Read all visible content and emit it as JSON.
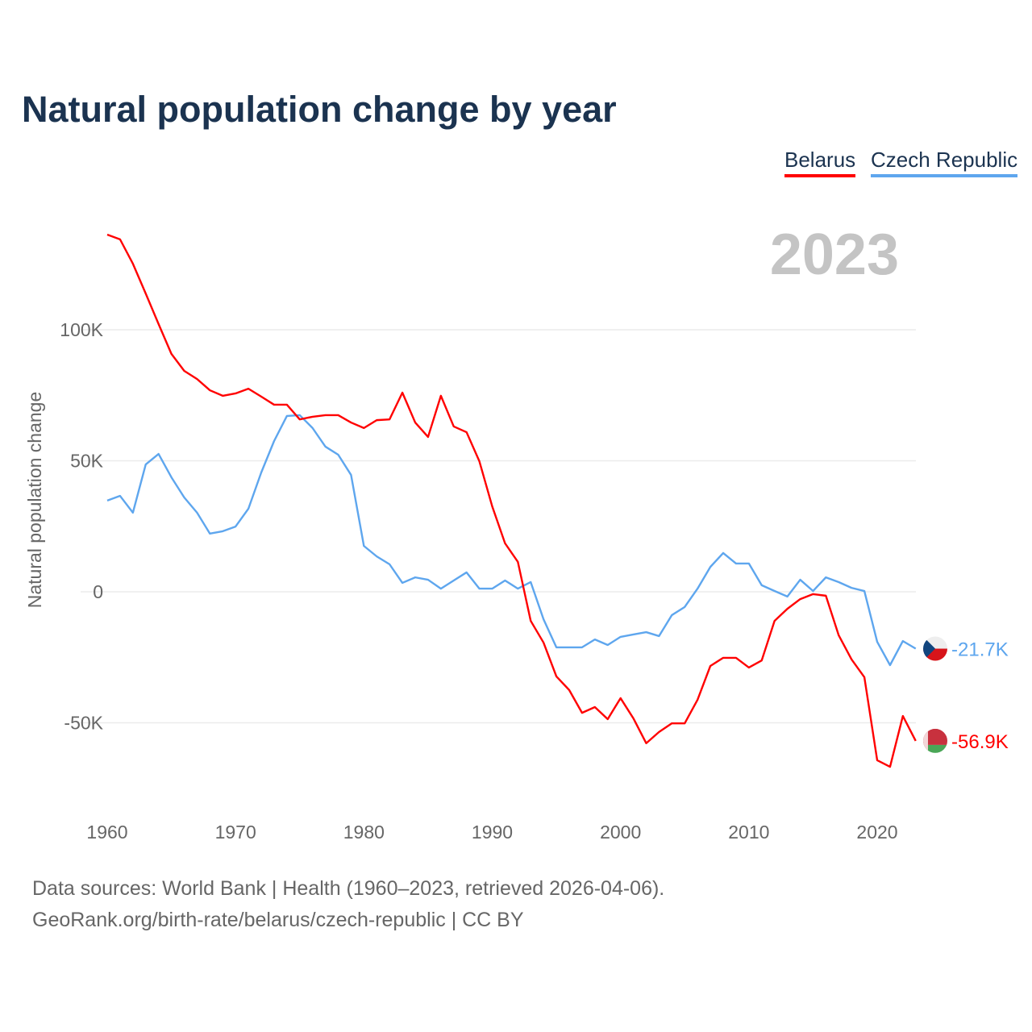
{
  "chart_data": {
    "type": "line",
    "title": "Natural population change by year",
    "ylabel": "Natural population change",
    "xlabel": "",
    "xlim": [
      1960,
      2023
    ],
    "ylim": [
      -80000,
      140000
    ],
    "x_ticks": [
      1960,
      1970,
      1980,
      1990,
      2000,
      2010,
      2020
    ],
    "x_tick_labels": [
      "1960",
      "1970",
      "1980",
      "1990",
      "2000",
      "2010",
      "2020"
    ],
    "y_ticks": [
      100000,
      50000,
      0,
      -50000
    ],
    "y_tick_labels": [
      "100K",
      "50K",
      "0",
      "-50K"
    ],
    "grid": true,
    "legend_placement": "top-right",
    "year_label": "2023",
    "x": [
      1960,
      1961,
      1962,
      1963,
      1964,
      1965,
      1966,
      1967,
      1968,
      1969,
      1970,
      1971,
      1972,
      1973,
      1974,
      1975,
      1976,
      1977,
      1978,
      1979,
      1980,
      1981,
      1982,
      1983,
      1984,
      1985,
      1986,
      1987,
      1988,
      1989,
      1990,
      1991,
      1992,
      1993,
      1994,
      1995,
      1996,
      1997,
      1998,
      1999,
      2000,
      2001,
      2002,
      2003,
      2004,
      2005,
      2006,
      2007,
      2008,
      2009,
      2010,
      2011,
      2012,
      2013,
      2014,
      2015,
      2016,
      2017,
      2018,
      2019,
      2020,
      2021,
      2022,
      2023
    ],
    "series": [
      {
        "name": "Belarus",
        "color": "#ff0000",
        "end_label": "-56.9K",
        "flag": "belarus-flag",
        "values": [
          136300,
          134500,
          125200,
          113800,
          102200,
          90800,
          84300,
          81200,
          76900,
          74800,
          75700,
          77500,
          74500,
          71400,
          71400,
          65800,
          66800,
          67400,
          67400,
          64600,
          62500,
          65500,
          65800,
          76000,
          64600,
          59100,
          74800,
          63100,
          60900,
          49800,
          32600,
          18500,
          11400,
          -11100,
          -19400,
          -32300,
          -37500,
          -46200,
          -44000,
          -48600,
          -40600,
          -48300,
          -57800,
          -53500,
          -50200,
          -50200,
          -41200,
          -28300,
          -25200,
          -25200,
          -28900,
          -26200,
          -11100,
          -6500,
          -2800,
          -900,
          -1500,
          -16600,
          -25800,
          -32600,
          -64300,
          -66800,
          -47400,
          -56900
        ]
      },
      {
        "name": "Czech Republic",
        "color": "#5ea6ee",
        "end_label": "-21.7K",
        "flag": "czech-flag",
        "values": [
          34800,
          36600,
          30200,
          48600,
          52600,
          43700,
          36000,
          30200,
          22200,
          23100,
          24900,
          31700,
          45500,
          57500,
          67100,
          67400,
          62500,
          55400,
          52300,
          44600,
          17500,
          13500,
          10500,
          3400,
          5500,
          4600,
          1200,
          4300,
          7400,
          1200,
          1200,
          4300,
          1200,
          3700,
          -10500,
          -21200,
          -21200,
          -21200,
          -18200,
          -20300,
          -17200,
          -16300,
          -15400,
          -16900,
          -8900,
          -5800,
          1200,
          9500,
          14800,
          10800,
          10800,
          2500,
          300,
          -1800,
          4600,
          300,
          5500,
          3700,
          1500,
          300,
          -19100,
          -28000,
          -18800,
          -21700
        ]
      }
    ]
  },
  "footer": {
    "line1": "Data sources: World Bank | Health (1960–2023, retrieved 2026-04-06).",
    "line2": "GeoRank.org/birth-rate/belarus/czech-republic | CC BY"
  }
}
